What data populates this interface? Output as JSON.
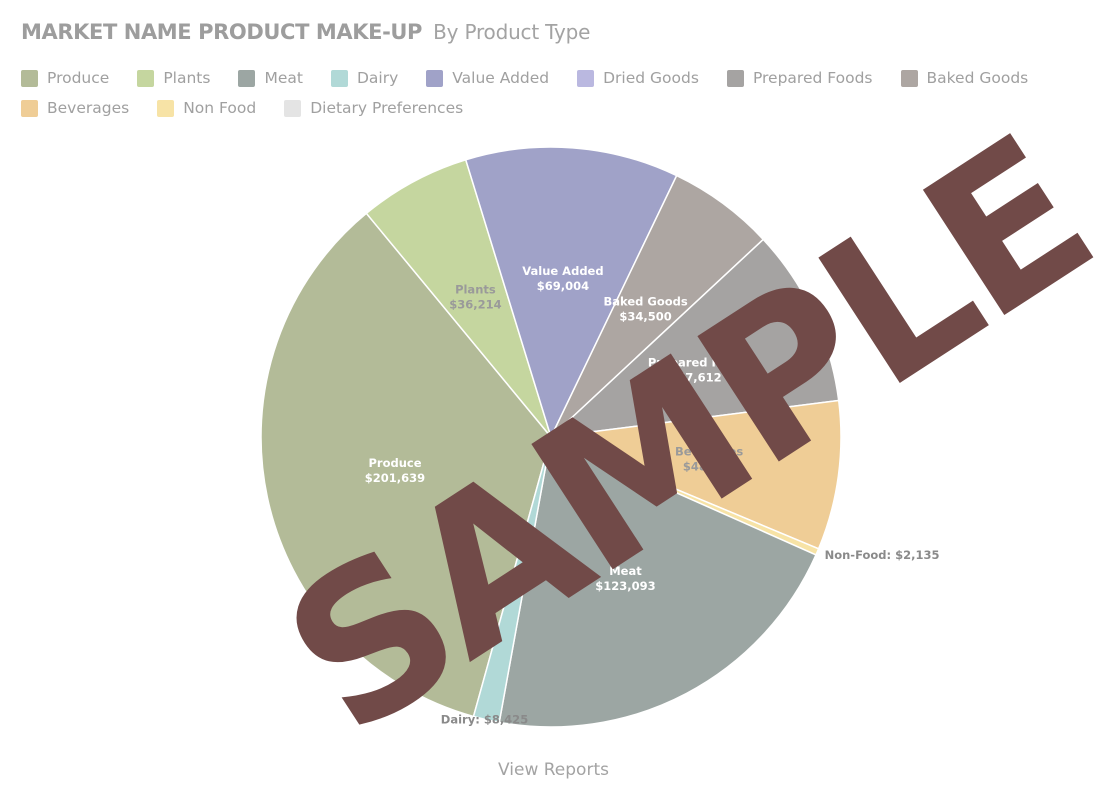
{
  "header": {
    "title": "MARKET NAME PRODUCT MAKE-UP",
    "subtitle": "By Product Type"
  },
  "legend": [
    {
      "label": "Produce",
      "color": "#b3bb98"
    },
    {
      "label": "Plants",
      "color": "#c5d69f"
    },
    {
      "label": "Meat",
      "color": "#9ca6a3"
    },
    {
      "label": "Dairy",
      "color": "#b1d9d7"
    },
    {
      "label": "Value Added",
      "color": "#a0a2c8"
    },
    {
      "label": "Dried Goods",
      "color": "#bab8e0"
    },
    {
      "label": "Prepared Foods",
      "color": "#a5a3a2"
    },
    {
      "label": "Baked Goods",
      "color": "#ada6a2"
    },
    {
      "label": "Beverages",
      "color": "#efcd96"
    },
    {
      "label": "Non Food",
      "color": "#f7e3a6"
    },
    {
      "label": "Dietary Preferences",
      "color": "#e4e4e4"
    }
  ],
  "chart_data": {
    "type": "pie",
    "slices": [
      {
        "name": "Produce",
        "label": "Produce",
        "value": 201639,
        "value_text": "$201,639",
        "color": "#b3bb98",
        "label_color": "#ffffff",
        "label_style": "inside"
      },
      {
        "name": "Plants",
        "label": "Plants",
        "value": 36214,
        "value_text": "$36,214",
        "color": "#c5d69f",
        "label_color": "#9a9a9a",
        "label_style": "inside"
      },
      {
        "name": "Value Added",
        "label": "Value Added",
        "value": 69004,
        "value_text": "$69,004",
        "color": "#a0a2c8",
        "label_color": "#ffffff",
        "label_style": "inside"
      },
      {
        "name": "Baked Goods",
        "label": "Baked Goods",
        "value": 34500,
        "value_text": "$34,500",
        "color": "#ada6a2",
        "label_color": "#ffffff",
        "label_style": "inside"
      },
      {
        "name": "Prepared Foods",
        "label": "Prepared Food",
        "value": 57612,
        "value_text": "$57,612",
        "color": "#a5a3a2",
        "label_color": "#ffffff",
        "label_style": "inside"
      },
      {
        "name": "Beverages",
        "label": "Beverages",
        "value": 48258,
        "value_text": "$48,258",
        "color": "#efcd96",
        "label_color": "#9a9a9a",
        "label_style": "inside"
      },
      {
        "name": "Non Food",
        "label": "Non-Food",
        "value": 2135,
        "value_text": "$2,135",
        "color": "#f7e3a6",
        "label_color": "#8a8a8a",
        "label_style": "outside"
      },
      {
        "name": "Meat",
        "label": "Meat",
        "value": 123093,
        "value_text": "$123,093",
        "color": "#9ca6a3",
        "label_color": "#ffffff",
        "label_style": "inside"
      },
      {
        "name": "Dairy",
        "label": "Dairy",
        "value": 8425,
        "value_text": "$8,425",
        "color": "#b1d9d7",
        "label_color": "#8a8a8a",
        "label_style": "outside"
      }
    ]
  },
  "footer": {
    "link": "View Reports"
  },
  "watermark": {
    "text": "SAMPLE"
  }
}
